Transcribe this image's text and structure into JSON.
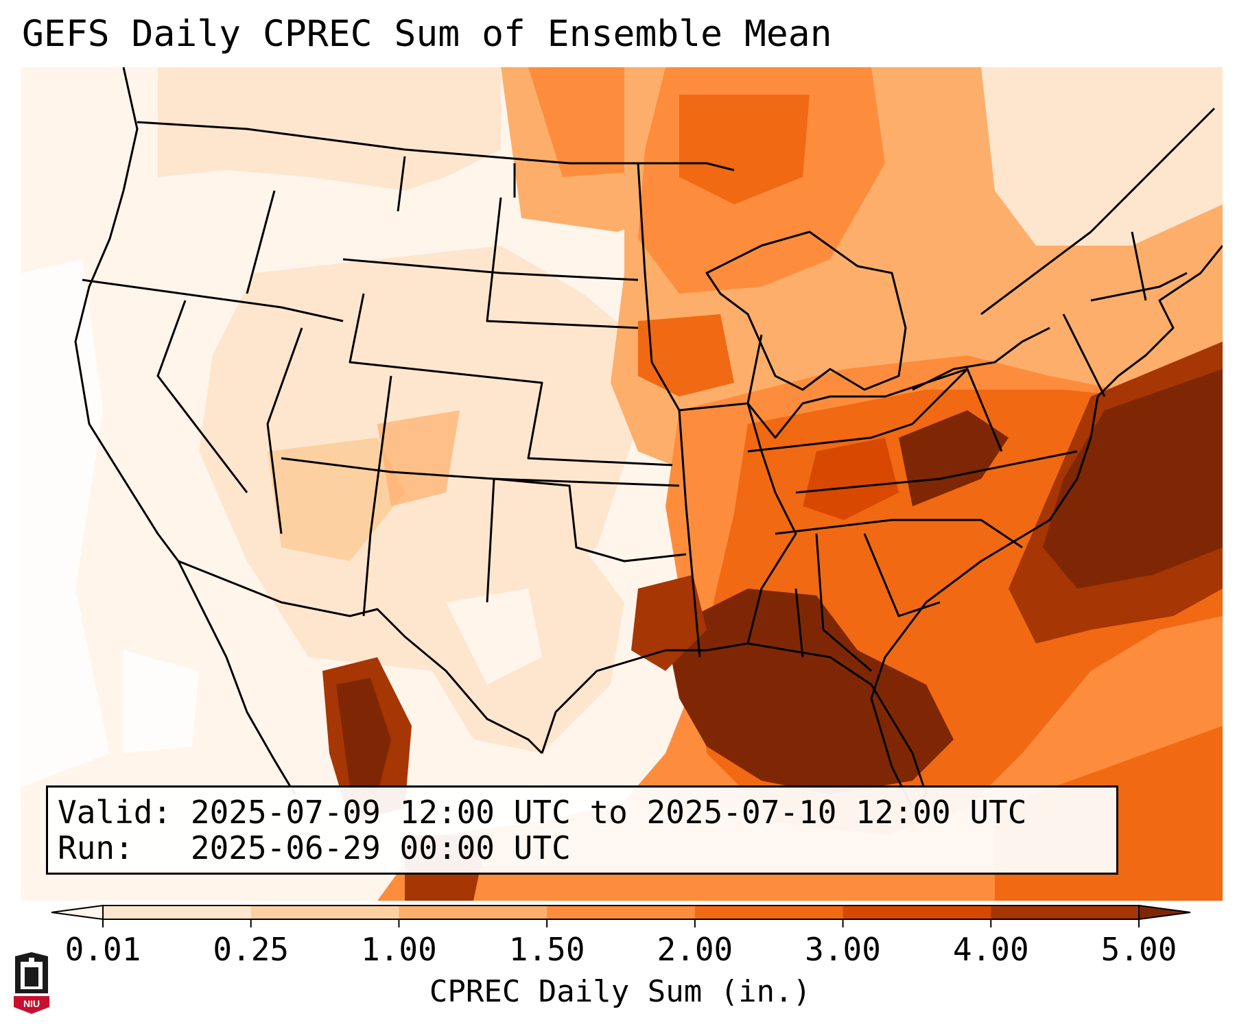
{
  "title": "GEFS Daily CPREC Sum of Ensemble Mean",
  "info": {
    "valid_label": "Valid:",
    "valid_value": "2025-07-09 12:00 UTC to 2025-07-10 12:00 UTC",
    "run_label": "Run:",
    "run_value": "2025-06-29 00:00 UTC"
  },
  "colorbar": {
    "label": "CPREC Daily Sum (in.)",
    "ticks": [
      "0.01",
      "0.25",
      "1.00",
      "1.50",
      "2.00",
      "3.00",
      "4.00",
      "5.00"
    ],
    "colors": [
      "#fff5eb",
      "#fee6ce",
      "#fdd0a2",
      "#fdae6b",
      "#fd8d3c",
      "#f16913",
      "#d94801",
      "#a63603",
      "#7f2704"
    ],
    "extend": "both"
  },
  "map": {
    "projection": "lambert-conformal",
    "region": "CONUS and surroundings",
    "features": [
      "coastlines",
      "state boundaries",
      "country borders"
    ]
  },
  "logo": {
    "text": "NIU"
  }
}
